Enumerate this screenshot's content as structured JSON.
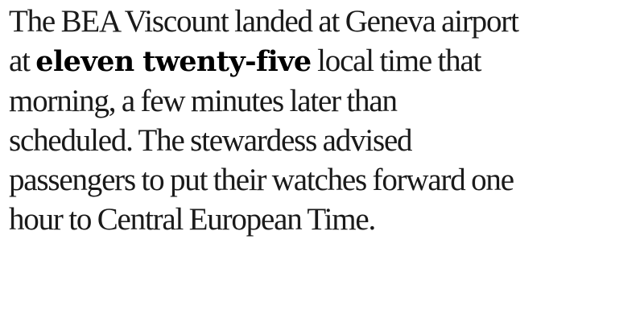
{
  "document": {
    "line1": "The BEA Viscount landed at Geneva airport",
    "line2_before": "at ",
    "line2_emphasis": "eleven twenty-five",
    "line2_after": " local time that",
    "line3": "morning, a few minutes later than",
    "line4": "scheduled. The stewardess advised",
    "line5": "passengers to put their watches forward one",
    "line6": "hour to Central European Time."
  }
}
